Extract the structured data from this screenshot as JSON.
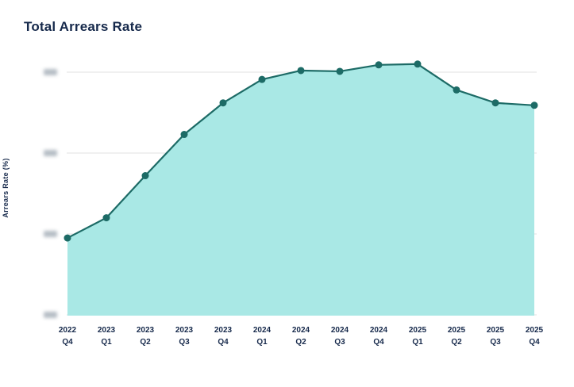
{
  "header": {
    "title": "Total Arrears Rate"
  },
  "chart_data": {
    "type": "area",
    "title": "Total Arrears Rate",
    "xlabel": "",
    "ylabel": "Arrears Rate (%)",
    "categories": [
      [
        "2022",
        "Q4"
      ],
      [
        "2023",
        "Q1"
      ],
      [
        "2023",
        "Q2"
      ],
      [
        "2023",
        "Q3"
      ],
      [
        "2023",
        "Q4"
      ],
      [
        "2024",
        "Q1"
      ],
      [
        "2024",
        "Q2"
      ],
      [
        "2024",
        "Q3"
      ],
      [
        "2024",
        "Q4"
      ],
      [
        "2025",
        "Q1"
      ],
      [
        "2025",
        "Q2"
      ],
      [
        "2025",
        "Q3"
      ],
      [
        "2025",
        "Q4"
      ]
    ],
    "values": [
      0.96,
      1.21,
      1.73,
      2.24,
      2.63,
      2.92,
      3.03,
      3.02,
      3.1,
      3.11,
      2.79,
      2.63,
      2.6
    ],
    "value_units": "gridline-intervals above lowest gridline (numeric y-axis tick labels are blurred/illegible in source)",
    "y_tick_labels_blurred": true,
    "y_gridline_values": [
      0,
      1,
      2,
      3
    ],
    "ylim": [
      0,
      3.2
    ],
    "grid": true,
    "legend": false,
    "colors": {
      "line": "#1d6b66",
      "dot": "#1d6b66",
      "fill": "#a9e8e5",
      "gridline": "#ececec",
      "text": "#16294b",
      "blur_blob": "#8e9aa6"
    }
  }
}
